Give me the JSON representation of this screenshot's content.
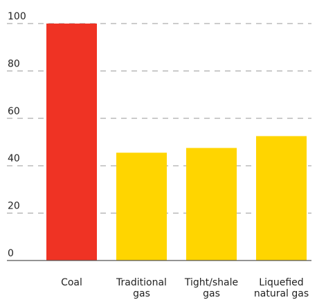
{
  "chart_data": {
    "type": "bar",
    "title": "",
    "xlabel": "",
    "ylabel": "",
    "ylim": [
      0,
      100
    ],
    "yticks": [
      0,
      20,
      40,
      60,
      80,
      100
    ],
    "grid": "horizontal dashed",
    "categories": [
      [
        "Coal"
      ],
      [
        "Traditional",
        "gas"
      ],
      [
        "Tight/shale",
        "gas"
      ],
      [
        "Liquefied",
        "natural gas"
      ]
    ],
    "values": [
      100,
      45.5,
      47.5,
      52.5
    ],
    "colors": [
      "#ef3324",
      "#ffd500",
      "#ffd500",
      "#ffd500"
    ]
  }
}
